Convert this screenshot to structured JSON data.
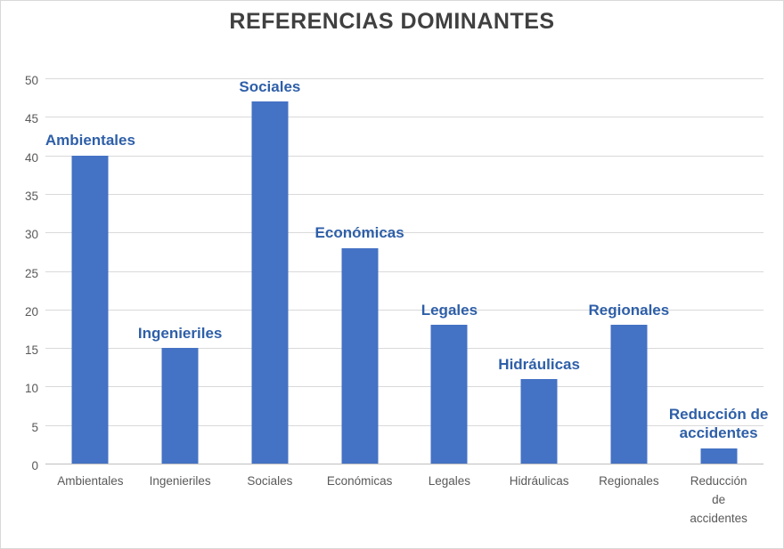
{
  "chart_data": {
    "type": "bar",
    "title": "REFERENCIAS DOMINANTES",
    "categories": [
      "Ambientales",
      "Ingenieriles",
      "Sociales",
      "Económicas",
      "Legales",
      "Hidráulicas",
      "Regionales",
      "Reducción de accidentes"
    ],
    "values": [
      40,
      15,
      47,
      28,
      18,
      11,
      18,
      2
    ],
    "series_labels": [
      "Ambientales",
      "Ingenieriles",
      "Sociales",
      "Económicas",
      "Legales",
      "Hidráulicas",
      "Regionales",
      "Reducción de accidentes"
    ],
    "x_tick_labels": [
      "Ambientales",
      "Ingenieriles",
      "Sociales",
      "Económicas",
      "Legales",
      "Hidráulicas",
      "Regionales",
      "Reducción\nde\naccidentes"
    ],
    "xlabel": "",
    "ylabel": "",
    "ylim": [
      0,
      50
    ],
    "ytick_step": 5,
    "grid": true,
    "legend": "none",
    "colors": {
      "bar": "#4472C4",
      "label": "#2E5FA8",
      "title": "#404040",
      "axis_text": "#595959",
      "gridline": "#D9D9D9"
    }
  }
}
